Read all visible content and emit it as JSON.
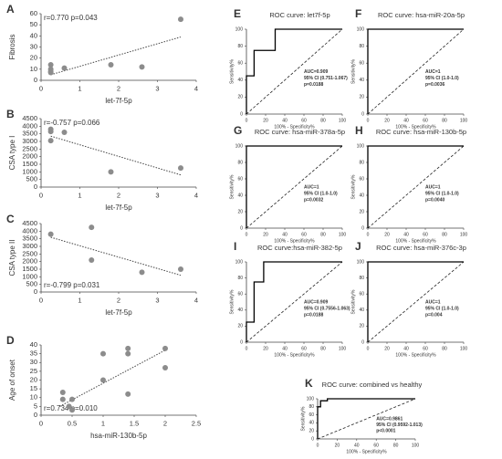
{
  "chart_data": [
    {
      "type": "scatter",
      "label": "A",
      "xlabel": "let-7f-5p",
      "ylabel": "Fibrosis",
      "annotation": "r=0.770   p=0.043",
      "annotation_corner": "top-left",
      "x": [
        0.25,
        0.25,
        0.25,
        0.25,
        0.6,
        1.8,
        2.6,
        3.6
      ],
      "values": [
        14,
        10,
        8,
        7,
        11,
        14,
        12,
        55
      ],
      "trend": {
        "x": [
          0.25,
          3.6
        ],
        "y": [
          5,
          39
        ]
      },
      "xlim": [
        0,
        4
      ],
      "ylim": [
        0,
        60
      ],
      "xticks": [
        0,
        1,
        2,
        3,
        4
      ],
      "yticks": [
        0,
        10,
        20,
        30,
        40,
        50,
        60
      ],
      "color": "#8c8c8c"
    },
    {
      "type": "scatter",
      "label": "B",
      "xlabel": "let-7f-5p",
      "ylabel": "CSA type I",
      "annotation": "r=-0.757   p=0.066",
      "annotation_corner": "top-left",
      "x": [
        0.25,
        0.25,
        0.25,
        0.6,
        1.8,
        3.6
      ],
      "values": [
        3800,
        3650,
        3050,
        3600,
        1000,
        1250
      ],
      "trend": {
        "x": [
          0.25,
          3.6
        ],
        "y": [
          3350,
          800
        ]
      },
      "xlim": [
        0,
        4
      ],
      "ylim": [
        0,
        4500
      ],
      "xticks": [
        0,
        1,
        2,
        3,
        4
      ],
      "yticks": [
        0,
        500,
        1000,
        1500,
        2000,
        2500,
        3000,
        3500,
        4000,
        4500
      ],
      "color": "#8c8c8c"
    },
    {
      "type": "scatter",
      "label": "C",
      "xlabel": "let-7f-5p",
      "ylabel": "CSA type II",
      "annotation": "r=-0.799   p=0.031",
      "annotation_corner": "bottom-left",
      "x": [
        0.25,
        1.3,
        1.3,
        2.6,
        3.6
      ],
      "values": [
        3800,
        4250,
        2100,
        1300,
        1500
      ],
      "trend": {
        "x": [
          0.25,
          3.6
        ],
        "y": [
          3600,
          1100
        ]
      },
      "xlim": [
        0,
        4
      ],
      "ylim": [
        0,
        4500
      ],
      "xticks": [
        0,
        1,
        2,
        3,
        4
      ],
      "yticks": [
        0,
        500,
        1000,
        1500,
        2000,
        2500,
        3000,
        3500,
        4000,
        4500
      ],
      "color": "#8c8c8c"
    },
    {
      "type": "scatter",
      "label": "D",
      "xlabel": "hsa-miR-130b-5p",
      "ylabel": "Age of onset",
      "annotation": "r=0.734  p=0.010",
      "annotation_corner": "bottom-left",
      "x": [
        0.35,
        0.35,
        0.45,
        0.5,
        0.5,
        1,
        1,
        1.4,
        1.4,
        1.4,
        2,
        2
      ],
      "values": [
        13,
        9,
        5,
        9,
        3,
        20,
        35,
        38,
        35,
        12,
        27,
        38
      ],
      "trend": {
        "x": [
          0.3,
          2
        ],
        "y": [
          5,
          37
        ]
      },
      "xlim": [
        0,
        2.5
      ],
      "ylim": [
        0,
        40
      ],
      "xticks": [
        0,
        0.5,
        1,
        1.5,
        2,
        2.5
      ],
      "yticks": [
        0,
        5,
        10,
        15,
        20,
        25,
        30,
        35,
        40
      ],
      "color": "#8c8c8c"
    },
    {
      "type": "line",
      "label": "E",
      "title": "ROC curve: let7f-5p",
      "xlabel": "100% - Specificity%",
      "ylabel": "Sensitivity%",
      "annotations": [
        "AUC=0.909",
        "95% CI (0.751-1.067)",
        "p=0.0188"
      ],
      "x": [
        0,
        0,
        8,
        8,
        30,
        30,
        100
      ],
      "values": [
        0,
        45,
        45,
        75,
        75,
        100,
        100
      ],
      "reference": {
        "x": [
          0,
          100
        ],
        "y": [
          0,
          100
        ]
      },
      "xlim": [
        0,
        100
      ],
      "ylim": [
        0,
        100
      ],
      "xticks": [
        0,
        20,
        40,
        60,
        80,
        100
      ],
      "yticks": [
        0,
        20,
        40,
        60,
        80,
        100
      ],
      "color": "#000000"
    },
    {
      "type": "line",
      "label": "F",
      "title": "ROC curve: hsa-miR-20a-5p",
      "xlabel": "100% - Specificity%",
      "ylabel": "Sensitivity%",
      "annotations": [
        "AUC=1",
        "95% CI (1.0-1.0)",
        "p=0.0036"
      ],
      "x": [
        0,
        0,
        100
      ],
      "values": [
        0,
        100,
        100
      ],
      "reference": {
        "x": [
          0,
          100
        ],
        "y": [
          0,
          100
        ]
      },
      "xlim": [
        0,
        100
      ],
      "ylim": [
        0,
        100
      ],
      "xticks": [
        0,
        20,
        40,
        60,
        80,
        100
      ],
      "yticks": [
        0,
        20,
        40,
        60,
        80,
        100
      ],
      "color": "#000000"
    },
    {
      "type": "line",
      "label": "G",
      "title": "ROC curve: hsa-miR-378a-5p",
      "xlabel": "100% - Specificity%",
      "ylabel": "Sensitivity%",
      "annotations": [
        "AUC=1",
        "95% CI (1.0-1.0)",
        "p=0.0032"
      ],
      "x": [
        0,
        0,
        100
      ],
      "values": [
        0,
        100,
        100
      ],
      "reference": {
        "x": [
          0,
          100
        ],
        "y": [
          0,
          100
        ]
      },
      "xlim": [
        0,
        100
      ],
      "ylim": [
        0,
        100
      ],
      "xticks": [
        0,
        20,
        40,
        60,
        80,
        100
      ],
      "yticks": [
        0,
        20,
        40,
        60,
        80,
        100
      ],
      "color": "#000000"
    },
    {
      "type": "line",
      "label": "H",
      "title": "ROC curve: hsa-miR-130b-5p",
      "xlabel": "100% - Specificity%",
      "ylabel": "Sensitivity%",
      "annotations": [
        "AUC=1",
        "95% CI (1.0-1.0)",
        "p=0.0040"
      ],
      "x": [
        0,
        0,
        100
      ],
      "values": [
        0,
        100,
        100
      ],
      "reference": {
        "x": [
          0,
          100
        ],
        "y": [
          0,
          100
        ]
      },
      "xlim": [
        0,
        100
      ],
      "ylim": [
        0,
        100
      ],
      "xticks": [
        0,
        20,
        40,
        60,
        80,
        100
      ],
      "yticks": [
        0,
        20,
        40,
        60,
        80,
        100
      ],
      "color": "#000000"
    },
    {
      "type": "line",
      "label": "I",
      "title": "ROC curve:hsa-miR-382-5p",
      "xlabel": "100% - Specificity%",
      "ylabel": "Sensitivity%",
      "annotations": [
        "AUC=0.909",
        "95% CI (0.7556-1.063)",
        "p=0.0188"
      ],
      "x": [
        0,
        0,
        8,
        8,
        18,
        18,
        100
      ],
      "values": [
        0,
        25,
        25,
        75,
        75,
        100,
        100
      ],
      "reference": {
        "x": [
          0,
          100
        ],
        "y": [
          0,
          100
        ]
      },
      "xlim": [
        0,
        100
      ],
      "ylim": [
        0,
        100
      ],
      "xticks": [
        0,
        20,
        40,
        60,
        80,
        100
      ],
      "yticks": [
        0,
        20,
        40,
        60,
        80,
        100
      ],
      "color": "#000000"
    },
    {
      "type": "line",
      "label": "J",
      "title": "ROC curve: hsa-miR-376c-3p",
      "xlabel": "100% - Specificity%",
      "ylabel": "Sensitivity%",
      "annotations": [
        "AUC=1",
        "95% CI (1.0-1.0)",
        "p=0.004"
      ],
      "x": [
        0,
        0,
        100
      ],
      "values": [
        0,
        100,
        100
      ],
      "reference": {
        "x": [
          0,
          100
        ],
        "y": [
          0,
          100
        ]
      },
      "xlim": [
        0,
        100
      ],
      "ylim": [
        0,
        100
      ],
      "xticks": [
        0,
        20,
        40,
        60,
        80,
        100
      ],
      "yticks": [
        0,
        20,
        40,
        60,
        80,
        100
      ],
      "color": "#000000"
    },
    {
      "type": "line",
      "label": "K",
      "title": "ROC curve: combined vs healthy",
      "xlabel": "100% - Specificity%",
      "ylabel": "Sensitivity%",
      "annotations": [
        "AUC=0.9861",
        "95% CI (0.9592-1.013)",
        "p<0.0001"
      ],
      "x": [
        0,
        0,
        3,
        3,
        10,
        10,
        100
      ],
      "values": [
        0,
        80,
        80,
        95,
        95,
        100,
        100
      ],
      "reference": {
        "x": [
          0,
          100
        ],
        "y": [
          0,
          100
        ]
      },
      "xlim": [
        0,
        100
      ],
      "ylim": [
        0,
        100
      ],
      "xticks": [
        0,
        20,
        40,
        60,
        80,
        100
      ],
      "yticks": [
        0,
        20,
        40,
        60,
        80,
        100
      ],
      "color": "#000000"
    }
  ]
}
